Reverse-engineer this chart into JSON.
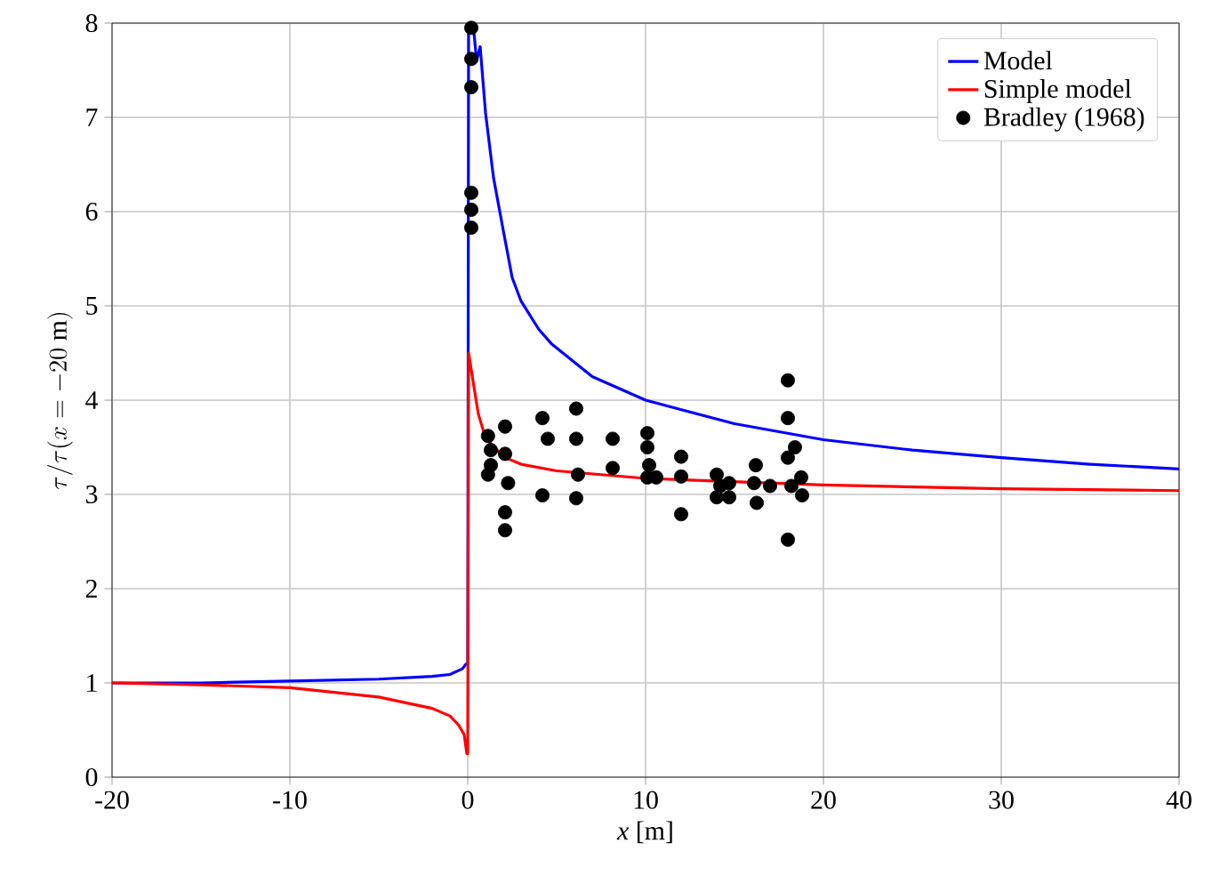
{
  "chart_data": {
    "type": "line",
    "xlabel": "*x* [m]",
    "ylabel": "\\tau/\\tau(x=-20\\ \\mathrm{m})",
    "xlim": [
      -20,
      40
    ],
    "ylim": [
      0,
      8
    ],
    "xticks": [
      -20,
      -10,
      0,
      10,
      20,
      30,
      40
    ],
    "yticks": [
      0,
      1,
      2,
      3,
      4,
      5,
      6,
      7,
      8
    ],
    "grid": true,
    "legend": "top right",
    "series": [
      {
        "name": "Model",
        "color": "#0000ff",
        "x": [
          -20,
          -15,
          -10,
          -5,
          -2,
          -1,
          -0.3,
          -0.1,
          0,
          0.05,
          0.3,
          0.5,
          0.7,
          1,
          1.45,
          2,
          2.5,
          3,
          4,
          4.7,
          7,
          10,
          15,
          20,
          25,
          30,
          35,
          40
        ],
        "values": [
          1.0,
          1.0,
          1.02,
          1.04,
          1.07,
          1.09,
          1.15,
          1.2,
          1.2,
          8.0,
          8.0,
          7.6,
          7.75,
          7.05,
          6.36,
          5.8,
          5.3,
          5.05,
          4.75,
          4.6,
          4.25,
          4.0,
          3.75,
          3.58,
          3.47,
          3.39,
          3.32,
          3.27
        ]
      },
      {
        "name": "Simple model",
        "color": "#ff0000",
        "x": [
          -20,
          -15,
          -10,
          -5,
          -3.5,
          -2,
          -1,
          -0.5,
          -0.2,
          -0.05,
          0,
          0.05,
          0.3,
          0.6,
          1,
          2,
          3,
          5,
          10,
          20,
          30,
          40
        ],
        "values": [
          1.0,
          0.98,
          0.95,
          0.85,
          0.79,
          0.73,
          0.65,
          0.55,
          0.45,
          0.25,
          0.25,
          4.5,
          4.2,
          3.85,
          3.6,
          3.4,
          3.32,
          3.25,
          3.17,
          3.1,
          3.06,
          3.04
        ]
      },
      {
        "name": "Bradley (1968)",
        "type": "scatter",
        "color": "#000000",
        "marker": "circle",
        "x": [
          0.2,
          0.2,
          0.2,
          0.2,
          0.2,
          0.2,
          1.14,
          2.1,
          1.3,
          2.1,
          1.3,
          1.14,
          2.27,
          2.1,
          2.1,
          4.2,
          4.5,
          4.2,
          6.1,
          6.1,
          6.2,
          6.1,
          8.15,
          8.15,
          10.1,
          10.1,
          10.2,
          10.1,
          10.6,
          12.0,
          12.0,
          12.0,
          14.0,
          14.2,
          14.0,
          14.7,
          14.7,
          16.2,
          16.1,
          16.25,
          17.0,
          18.0,
          18.0,
          18.4,
          18.0,
          18.75,
          18.2,
          18.8,
          18.0
        ],
        "values": [
          7.95,
          7.62,
          7.32,
          6.2,
          6.02,
          5.83,
          3.62,
          3.72,
          3.47,
          3.43,
          3.31,
          3.21,
          3.12,
          2.81,
          2.62,
          3.81,
          3.59,
          2.99,
          3.91,
          3.59,
          3.21,
          2.96,
          3.59,
          3.28,
          3.65,
          3.5,
          3.31,
          3.18,
          3.18,
          3.4,
          3.19,
          2.79,
          3.21,
          3.09,
          2.97,
          3.12,
          2.97,
          3.31,
          3.12,
          2.91,
          3.09,
          4.21,
          3.81,
          3.5,
          3.39,
          3.18,
          3.09,
          2.99,
          2.52
        ]
      }
    ]
  }
}
